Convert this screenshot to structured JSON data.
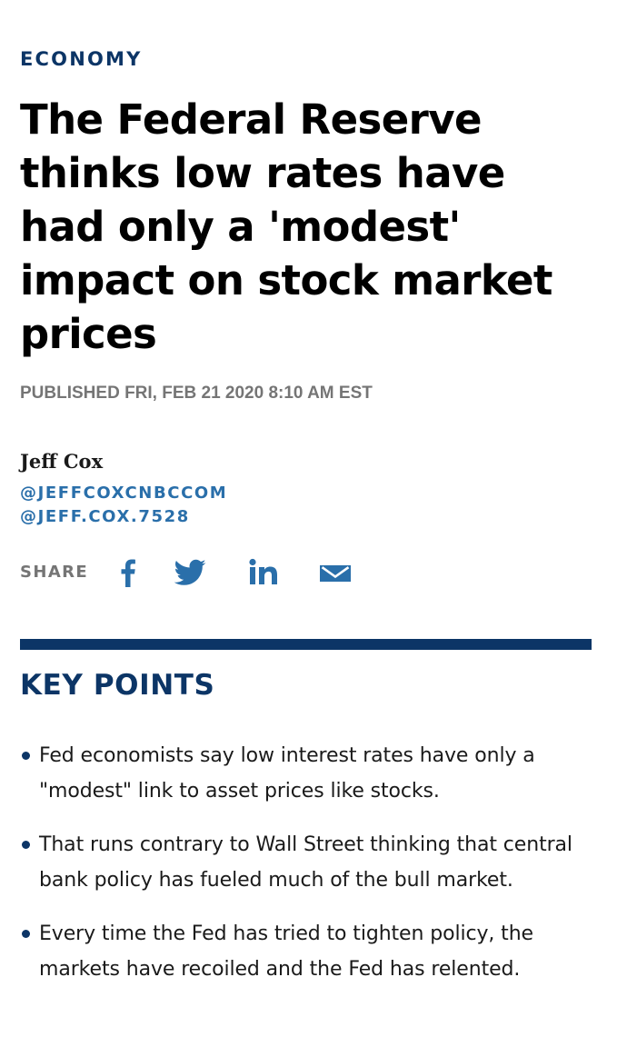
{
  "section": {
    "label": "ECONOMY"
  },
  "article": {
    "headline": "The Federal Reserve thinks low rates have had only a 'modest' impact on stock market prices",
    "published": "PUBLISHED FRI, FEB 21 2020 8:10 AM EST"
  },
  "author": {
    "name": "Jeff Cox",
    "handles": [
      "@JEFFCOXCNBCCOM",
      "@JEFF.COX.7528"
    ]
  },
  "share": {
    "label": "SHARE",
    "buttons": [
      {
        "icon": "facebook-icon"
      },
      {
        "icon": "twitter-icon"
      },
      {
        "icon": "linkedin-icon"
      },
      {
        "icon": "email-icon"
      }
    ]
  },
  "colors": {
    "brand_navy": "#0c3566",
    "link_blue": "#2a6faa",
    "gray": "#757575"
  },
  "key_points": {
    "heading": "KEY POINTS",
    "items": [
      "Fed economists say low interest rates have only a \"modest\" link to asset prices like stocks.",
      "That runs contrary to Wall Street thinking that central bank policy has fueled much of the bull market.",
      "Every time the Fed has tried to tighten policy, the markets have recoiled and the Fed has relented."
    ]
  }
}
